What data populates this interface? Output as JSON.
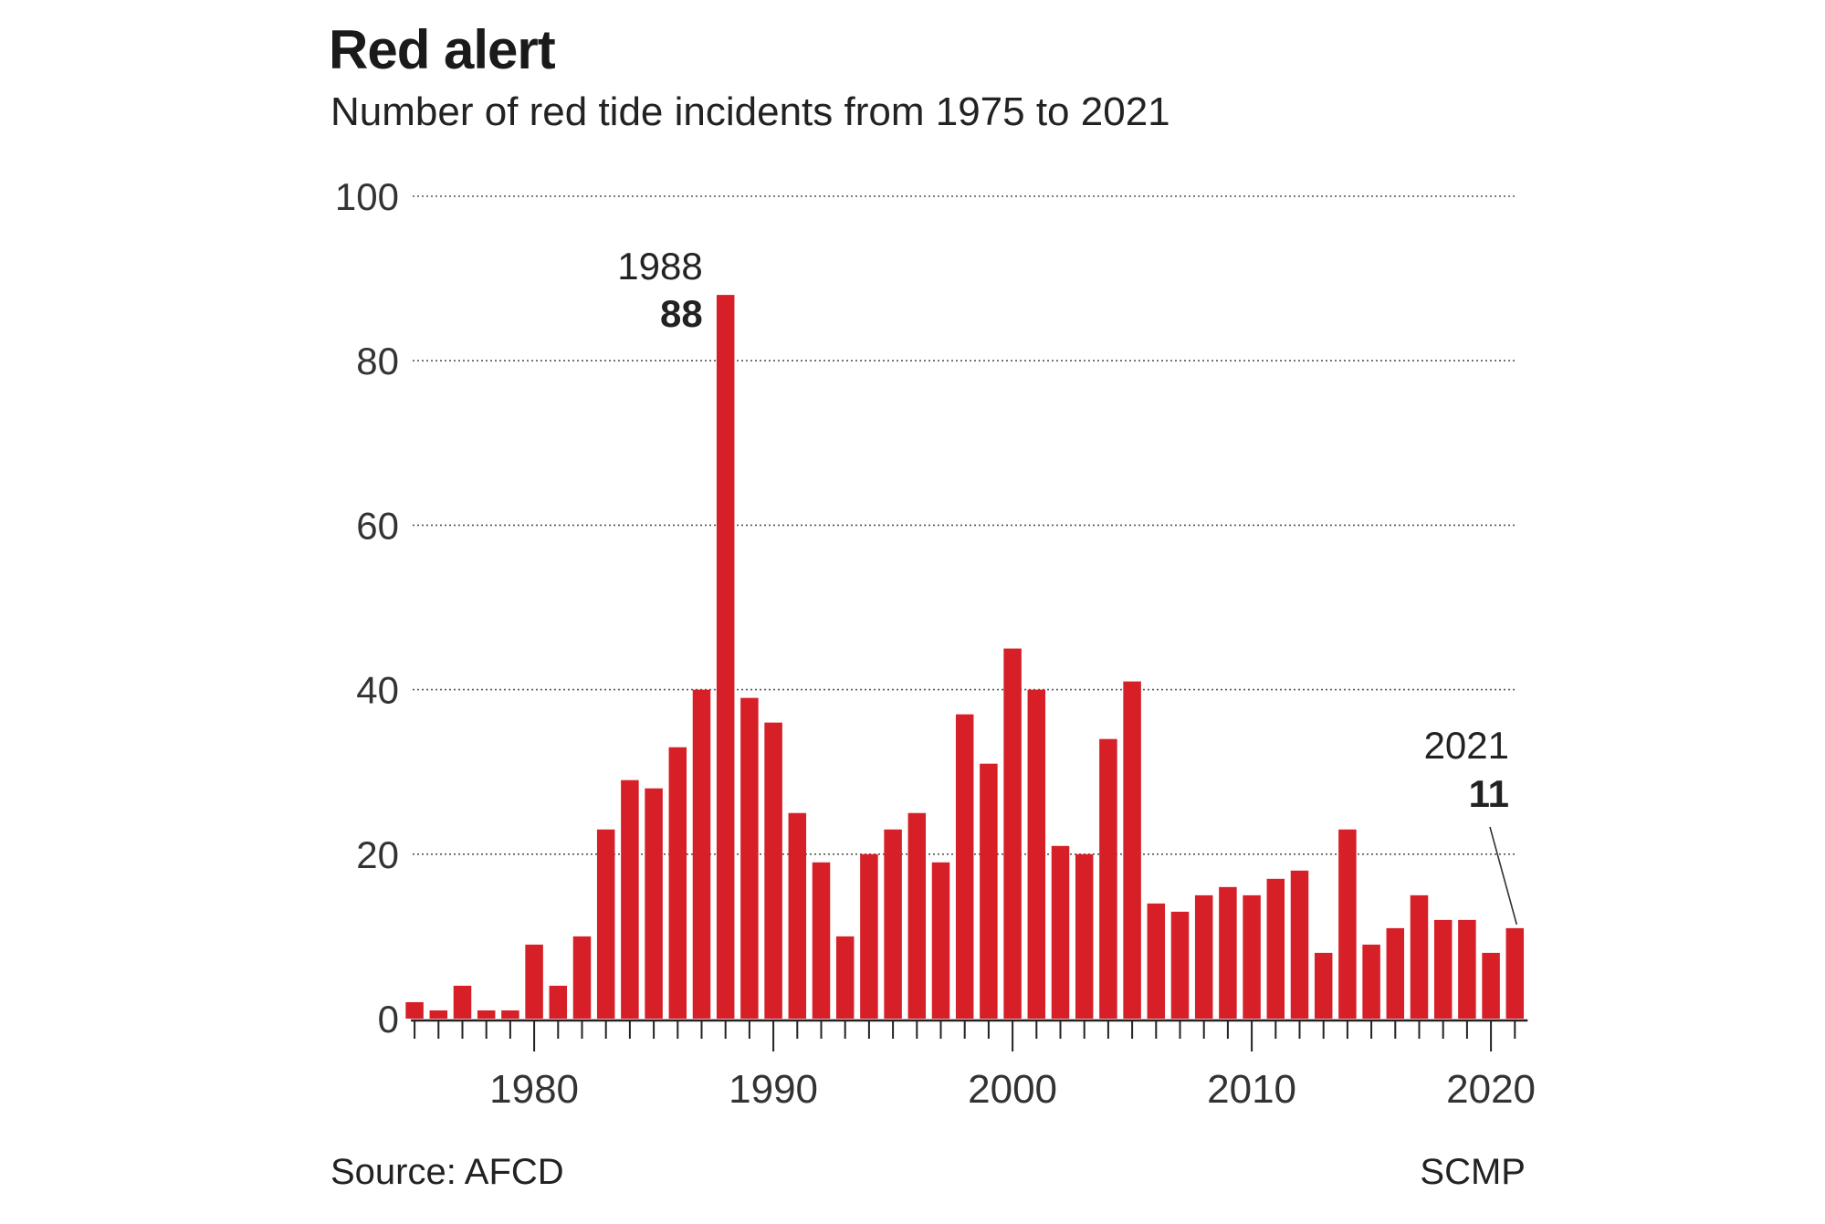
{
  "colors": {
    "bar": "#d61f26",
    "grid": "#555555",
    "text": "#1a1a1a"
  },
  "footer": {
    "source": "Source: AFCD",
    "credit": "SCMP"
  },
  "chart_data": {
    "type": "bar",
    "title": "Red alert",
    "subtitle": "Number of red tide incidents from 1975 to 2021",
    "xlabel": "",
    "ylabel": "",
    "ylim": [
      0,
      100
    ],
    "yticks": [
      0,
      20,
      40,
      60,
      80,
      100
    ],
    "xticks": [
      1980,
      1990,
      2000,
      2010,
      2020
    ],
    "grid": true,
    "categories": [
      1975,
      1976,
      1977,
      1978,
      1979,
      1980,
      1981,
      1982,
      1983,
      1984,
      1985,
      1986,
      1987,
      1988,
      1989,
      1990,
      1991,
      1992,
      1993,
      1994,
      1995,
      1996,
      1997,
      1998,
      1999,
      2000,
      2001,
      2002,
      2003,
      2004,
      2005,
      2006,
      2007,
      2008,
      2009,
      2010,
      2011,
      2012,
      2013,
      2014,
      2015,
      2016,
      2017,
      2018,
      2019,
      2020,
      2021
    ],
    "values": [
      2,
      1,
      4,
      1,
      1,
      9,
      4,
      10,
      23,
      29,
      28,
      33,
      40,
      88,
      39,
      36,
      25,
      19,
      10,
      20,
      23,
      25,
      19,
      37,
      31,
      45,
      40,
      21,
      20,
      34,
      41,
      14,
      13,
      15,
      16,
      15,
      17,
      18,
      8,
      23,
      9,
      11,
      15,
      12,
      12,
      8,
      11
    ],
    "annotations": [
      {
        "year": "1988",
        "value": "88"
      },
      {
        "year": "2021",
        "value": "11"
      }
    ]
  }
}
